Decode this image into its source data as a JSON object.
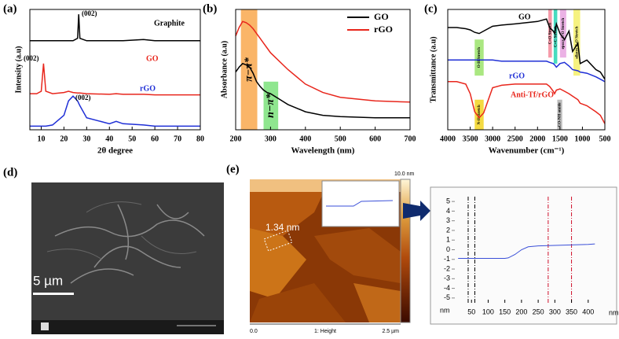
{
  "chart_data": [
    {
      "type": "line",
      "panel_label": "(a)",
      "xlabel": "2θ degree",
      "ylabel": "Intensity (a.u)",
      "xlim": [
        5,
        80
      ],
      "ylim": [
        0,
        100
      ],
      "xticks": [
        10,
        20,
        30,
        40,
        50,
        60,
        70,
        80
      ],
      "x": [
        5,
        8,
        10,
        11,
        12,
        15,
        20,
        22,
        24,
        26,
        26.5,
        27,
        30,
        40,
        43,
        46,
        55,
        60,
        70,
        80
      ],
      "series": [
        {
          "name": "Graphite",
          "color": "#000000",
          "values": [
            74,
            74,
            74,
            74,
            74,
            74,
            74,
            74,
            74,
            76,
            96,
            76,
            74,
            74,
            74,
            74,
            75,
            74,
            74,
            74
          ]
        },
        {
          "name": "GO",
          "color": "#e8261c",
          "values": [
            30,
            30,
            32,
            55,
            32,
            30,
            31,
            32,
            31,
            30.5,
            30.5,
            30.5,
            30,
            29.5,
            30,
            29.5,
            29.5,
            29,
            29,
            29
          ]
        },
        {
          "name": "rGO",
          "color": "#1f2fd6",
          "values": [
            3,
            3,
            3,
            3,
            3,
            4,
            12,
            24,
            28,
            24,
            22,
            20,
            10,
            5,
            7,
            5,
            4,
            3,
            3,
            3
          ]
        }
      ],
      "annotations": [
        "(002)",
        "(002)",
        "(002)"
      ]
    },
    {
      "type": "line",
      "panel_label": "(b)",
      "xlabel": "Wavelength (nm)",
      "ylabel": "Absorbance (a.u)",
      "xlim": [
        200,
        700
      ],
      "ylim": [
        0,
        100
      ],
      "xticks": [
        200,
        300,
        400,
        500,
        600,
        700
      ],
      "legend": "upper right",
      "x": [
        200,
        210,
        220,
        230,
        240,
        250,
        260,
        270,
        280,
        290,
        300,
        350,
        400,
        450,
        500,
        600,
        700
      ],
      "series": [
        {
          "name": "GO",
          "color": "#000000",
          "values": [
            48,
            52,
            55,
            54,
            52,
            47,
            40,
            36,
            33,
            31,
            30,
            21,
            15,
            12,
            11,
            10,
            10
          ]
        },
        {
          "name": "rGO",
          "color": "#e8261c",
          "values": [
            78,
            85,
            90,
            89,
            87,
            84,
            80,
            76,
            72,
            68,
            64,
            50,
            38,
            31,
            27,
            24,
            23
          ]
        }
      ],
      "bands": [
        {
          "label": "π−π*",
          "from": 215,
          "to": 262,
          "ymin": 0,
          "ymax": 100,
          "color": "#f9a84e"
        },
        {
          "label": "n−π*",
          "from": 280,
          "to": 322,
          "ymin": 0,
          "ymax": 40,
          "color": "#7be27b"
        }
      ]
    },
    {
      "type": "line",
      "panel_label": "(c)",
      "xlabel": "Wavenumber (cm⁻¹)",
      "ylabel": "Transmittance (a.u)",
      "xlim": [
        4000,
        500
      ],
      "ylim": [
        0,
        100
      ],
      "xticks": [
        4000,
        3500,
        3000,
        2500,
        2000,
        1500,
        1000,
        500
      ],
      "x": [
        4000,
        3800,
        3600,
        3500,
        3400,
        3300,
        3200,
        3000,
        2800,
        2500,
        2000,
        1800,
        1730,
        1650,
        1620,
        1580,
        1500,
        1400,
        1300,
        1220,
        1100,
        1050,
        900,
        700,
        600,
        500
      ],
      "series": [
        {
          "name": "GO",
          "color": "#000000",
          "values": [
            85,
            85,
            84,
            83,
            81,
            80,
            82,
            86,
            87,
            88,
            90,
            92,
            85,
            82,
            80,
            88,
            80,
            75,
            82,
            65,
            72,
            55,
            58,
            50,
            48,
            42
          ]
        },
        {
          "name": "rGO",
          "color": "#1f2fd6",
          "values": [
            58,
            58,
            58,
            58,
            58,
            58,
            58,
            58,
            57,
            57,
            57,
            57,
            56,
            55,
            54,
            52,
            55,
            56,
            53,
            50,
            49,
            48,
            47,
            44,
            42,
            40
          ]
        },
        {
          "name": "Anti-Tf/rGO",
          "color": "#e8261c",
          "values": [
            40,
            40,
            38,
            30,
            15,
            10,
            14,
            35,
            37,
            38,
            38,
            38,
            36,
            32,
            30,
            33,
            34,
            32,
            30,
            28,
            25,
            22,
            20,
            15,
            12,
            5
          ]
        }
      ],
      "bands": [
        {
          "label": "O-H Stretch",
          "from": 3400,
          "to": 3200,
          "ymin": 45,
          "ymax": 75,
          "color": "#9be36b"
        },
        {
          "label": "C=O Stretch",
          "from": 1760,
          "to": 1680,
          "ymin": 60,
          "ymax": 100,
          "color": "#f48a9a"
        },
        {
          "label": "C=C Stretch",
          "from": 1640,
          "to": 1560,
          "ymin": 55,
          "ymax": 100,
          "color": "#27d6b4"
        },
        {
          "label": "epoxy C-O Stretch",
          "from": 1500,
          "to": 1360,
          "ymin": 60,
          "ymax": 100,
          "color": "#e7a4e0"
        },
        {
          "label": "alkoxy C-O Stretch",
          "from": 1200,
          "to": 1050,
          "ymin": 45,
          "ymax": 100,
          "color": "#f4f06a"
        },
        {
          "label": "N-H stretch",
          "from": 3400,
          "to": 3200,
          "ymin": 0,
          "ymax": 25,
          "color": "#f2d321"
        },
        {
          "label": "CO-NH amide",
          "from": 1560,
          "to": 1450,
          "ymin": 0,
          "ymax": 25,
          "color": "#b0b0b0"
        }
      ]
    },
    {
      "type": "line",
      "xlabel": "nm",
      "ylabel": "nm",
      "xlim": [
        0,
        450
      ],
      "ylim": [
        -5.5,
        5.5
      ],
      "xticks": [
        50,
        100,
        150,
        200,
        250,
        300,
        350,
        400
      ],
      "yticks": [
        -5,
        -4,
        -3,
        -2,
        -1,
        0,
        1,
        2,
        3,
        4,
        5
      ],
      "x": [
        10,
        50,
        100,
        150,
        160,
        180,
        200,
        220,
        250,
        300,
        350,
        400,
        420
      ],
      "series": [
        {
          "color": "#3a4fd8",
          "values": [
            -0.9,
            -0.9,
            -0.9,
            -0.9,
            -0.85,
            -0.5,
            0,
            0.3,
            0.4,
            0.45,
            0.5,
            0.55,
            0.6
          ]
        }
      ],
      "markers": [
        {
          "value": 40,
          "color": "#000000"
        },
        {
          "value": 60,
          "color": "#000000"
        },
        {
          "value": 280,
          "color": "#d0102a"
        },
        {
          "value": 350,
          "color": "#d0102a"
        }
      ]
    }
  ],
  "panels": {
    "d": {
      "label": "(d)",
      "scale_bar": "5 µm"
    },
    "e": {
      "label": "(e)",
      "step_height": "1.34 nm",
      "colorbar_max": "10.0 nm",
      "axis_start": "0.0",
      "channel": "1: Height",
      "axis_end": "2.5 µm"
    }
  }
}
